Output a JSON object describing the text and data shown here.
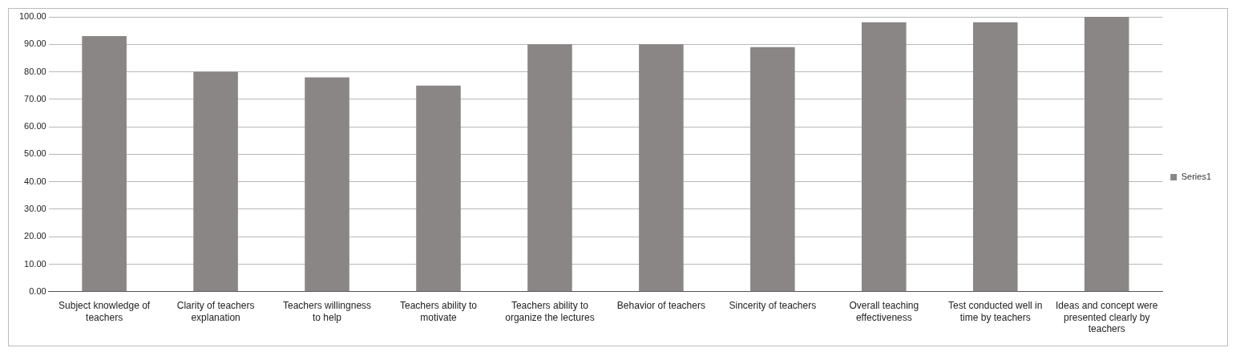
{
  "chart_data": {
    "type": "bar",
    "categories": [
      "Subject knowledge of teachers",
      "Clarity of teachers explanation",
      "Teachers willingness to help",
      "Teachers ability to motivate",
      "Teachers ability to organize the lectures",
      "Behavior of teachers",
      "Sincerity of teachers",
      "Overall teaching effectiveness",
      "Test conducted well in time by teachers",
      "Ideas and concept were presented clearly by teachers"
    ],
    "series": [
      {
        "name": "Series1",
        "color": "#8a8686",
        "values": [
          93,
          80,
          78,
          75,
          90,
          90,
          89,
          98,
          98,
          100
        ]
      }
    ],
    "ylim": [
      0,
      100
    ],
    "yticks": [
      {
        "value": 0,
        "label": "0.00"
      },
      {
        "value": 10,
        "label": "10.00"
      },
      {
        "value": 20,
        "label": "20.00"
      },
      {
        "value": 30,
        "label": "30.00"
      },
      {
        "value": 40,
        "label": "40.00"
      },
      {
        "value": 50,
        "label": "50.00"
      },
      {
        "value": 60,
        "label": "60.00"
      },
      {
        "value": 70,
        "label": "70.00"
      },
      {
        "value": 80,
        "label": "80.00"
      },
      {
        "value": 90,
        "label": "90.00"
      },
      {
        "value": 100,
        "label": "100.00"
      }
    ],
    "grid": "y",
    "legend": "right"
  }
}
